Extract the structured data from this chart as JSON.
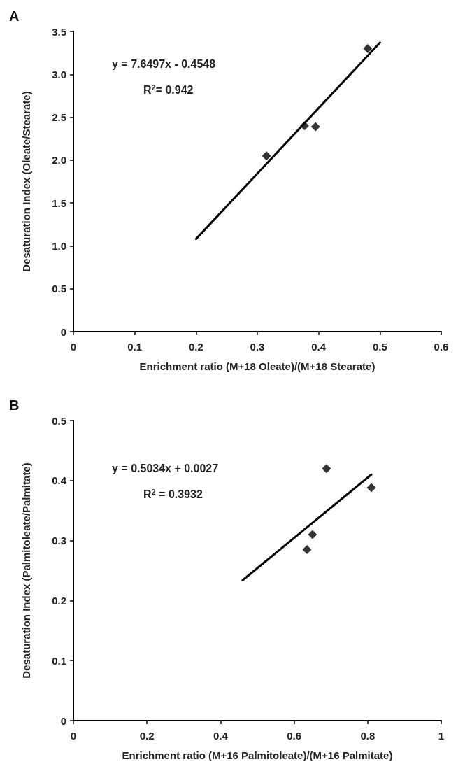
{
  "chart_data": [
    {
      "type": "scatter",
      "title": "A",
      "xlabel": "Enrichment ratio (M+18 Oleate)/(M+18 Stearate)",
      "ylabel": "Desaturation Index (Oleate/Stearate)",
      "annotations": [
        "y = 7.6497x - 0.4548",
        "R$^{2}$= 0.942"
      ],
      "marker": "diamond",
      "grid": false,
      "xlim": [
        0,
        0.6
      ],
      "xticks": [
        0,
        0.1,
        0.2,
        0.3,
        0.4,
        0.5,
        0.6
      ],
      "ylim": [
        0,
        3.5
      ],
      "yticks": [
        0,
        {
          "value": 0.5,
          "label": "0.5"
        },
        {
          "value": 1,
          "label": "1.0"
        },
        {
          "value": 1.5,
          "label": "1.5"
        },
        {
          "value": 2,
          "label": "2.0"
        },
        {
          "value": 2.5,
          "label": "2.5"
        },
        {
          "value": 3,
          "label": "3.0"
        },
        {
          "value": 3.5,
          "label": "3.5"
        }
      ],
      "series": [
        {
          "color": "#000000",
          "x": [
            0.315,
            0.377,
            0.395,
            0.48
          ],
          "values": [
            2.05,
            2.4,
            2.39,
            3.3
          ]
        },
        {
          "type": "line",
          "color": "#000000",
          "marker": "none",
          "line_style": "solid",
          "x": [
            0.2,
            0.5
          ],
          "values": [
            1.08,
            3.37
          ]
        }
      ]
    },
    {
      "type": "scatter",
      "title": "B",
      "xlabel": "Enrichment ratio (M+16 Palmitoleate)/(M+16 Palmitate)",
      "ylabel": "Desaturation Index (Palmitoleate/Palmitate)",
      "annotations": [
        "y = 0.5034x + 0.0027",
        "R$^{2}$ = 0.3932"
      ],
      "marker": "diamond",
      "grid": false,
      "xlim": [
        0,
        1
      ],
      "xticks": [
        0,
        0.2,
        0.4,
        0.6,
        0.8,
        1
      ],
      "ylim": [
        0,
        0.5
      ],
      "yticks": [
        0,
        0.1,
        0.2,
        0.3,
        0.4,
        0.5
      ],
      "series": [
        {
          "color": "#000000",
          "x": [
            0.635,
            0.65,
            0.688,
            0.81
          ],
          "values": [
            0.285,
            0.31,
            0.42,
            0.388
          ]
        },
        {
          "type": "line",
          "color": "#000000",
          "marker": "none",
          "line_style": "solid",
          "x": [
            0.46,
            0.81
          ],
          "values": [
            0.234,
            0.41
          ]
        }
      ]
    }
  ]
}
